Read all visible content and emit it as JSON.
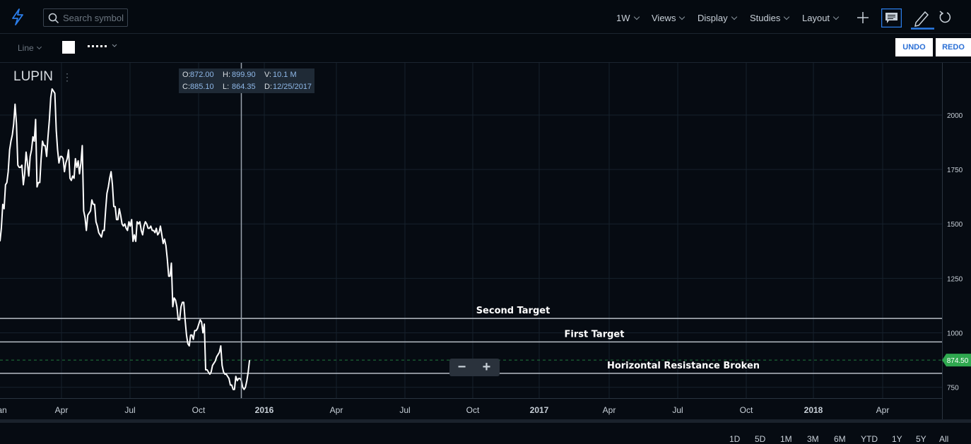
{
  "header": {
    "search_placeholder": "Search symbol",
    "menus": [
      {
        "label": "1W"
      },
      {
        "label": "Views"
      },
      {
        "label": "Display"
      },
      {
        "label": "Studies"
      },
      {
        "label": "Layout"
      }
    ],
    "icons": [
      "lightning-icon",
      "search-icon",
      "plus-icon",
      "comment-icon",
      "pencil-icon",
      "refresh-icon"
    ]
  },
  "toolbar": {
    "line_type": "Line",
    "line_color": "#ffffff",
    "undo_label": "UNDO",
    "redo_label": "REDO"
  },
  "symbol": "LUPIN",
  "ohlc": {
    "open_label": "O:",
    "open": "872.00",
    "high_label": "H:",
    "high": "899.90",
    "volume_label": "V:",
    "volume": "10.1 M",
    "close_label": "C:",
    "close": "885.10",
    "low_label": "L:",
    "low": "864.35",
    "date_label": "D:",
    "date": "12/25/2017"
  },
  "zoom": {
    "minus": "−",
    "plus": "+"
  },
  "ranges": [
    "1D",
    "5D",
    "1M",
    "3M",
    "6M",
    "YTD",
    "1Y",
    "5Y",
    "All"
  ],
  "chart_data": {
    "type": "line",
    "series": [
      {
        "values": [
          1420,
          1480,
          1590,
          1570,
          1680,
          1690,
          1740,
          1840,
          1880,
          1910,
          1960,
          2050,
          1960,
          1770,
          1760,
          1760,
          1770,
          1680,
          1730,
          1830,
          1780,
          1720,
          1810,
          1840,
          1900,
          1880,
          1980,
          1670,
          1690,
          1690,
          1800,
          1880,
          1860,
          1860,
          1810,
          1900,
          1980,
          2080,
          2120,
          2110,
          2100,
          1930,
          1840,
          1780,
          1810,
          1810,
          1800,
          1740,
          1780,
          1800,
          1840,
          1710,
          1700,
          1720,
          1710,
          1800,
          1760,
          1790,
          1730,
          1780,
          1860,
          1560,
          1530,
          1470,
          1540,
          1550,
          1560,
          1610,
          1590,
          1590,
          1510,
          1490,
          1460,
          1450,
          1440,
          1470,
          1470,
          1560,
          1640,
          1670,
          1710,
          1740,
          1680,
          1580,
          1580,
          1520,
          1520,
          1570,
          1540,
          1500,
          1490,
          1500,
          1480,
          1470,
          1510,
          1490,
          1520,
          1420,
          1450,
          1420,
          1510,
          1500,
          1510,
          1470,
          1450,
          1490,
          1510,
          1500,
          1480,
          1480,
          1490,
          1470,
          1470,
          1460,
          1480,
          1450,
          1460,
          1490,
          1450,
          1410,
          1430,
          1400,
          1340,
          1260,
          1260,
          1320,
          1120,
          1160,
          1150,
          1120,
          1060,
          1060,
          1120,
          1140,
          1140,
          1060,
          990,
          950,
          940,
          990,
          990,
          970,
          1010,
          1010,
          1020,
          1040,
          1060,
          1050,
          1000,
          1040,
          830,
          830,
          820,
          810,
          820,
          850,
          860,
          870,
          890,
          900,
          910,
          940,
          850,
          820,
          810,
          810,
          800,
          790,
          760,
          760,
          740,
          740,
          800,
          780,
          790,
          790,
          780,
          750,
          740,
          750,
          780,
          820,
          874.5
        ]
      }
    ],
    "x_labels": [
      "an",
      "Apr",
      "Jul",
      "Oct",
      "2016",
      "Apr",
      "Jul",
      "Oct",
      "2017",
      "Apr",
      "Jul",
      "Oct",
      "2018",
      "Apr"
    ],
    "y_ticks": [
      2000,
      1750,
      1500,
      1250,
      1000,
      750
    ],
    "ylim": [
      700,
      2240
    ],
    "last_price": "874.50",
    "last_price_value": 874.5,
    "last_price_color": "#2fa84f",
    "horizontal_lines": [
      {
        "label": "Second Target",
        "value": 1066
      },
      {
        "label": "First Target",
        "value": 958
      },
      {
        "label": "Horizontal Resistance Broken",
        "value": 814
      }
    ],
    "crosshair_index": 176,
    "grid": true,
    "line_color": "#ffffff"
  }
}
